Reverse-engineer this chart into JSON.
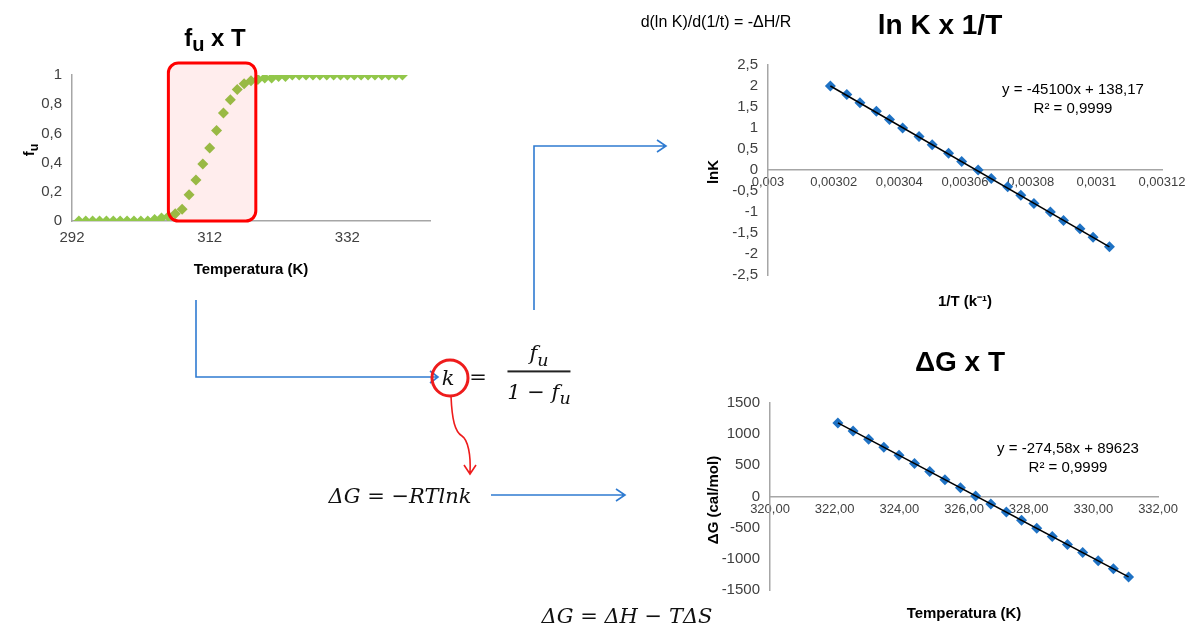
{
  "chart_data": [
    {
      "type": "scatter",
      "title": "f$_{u}$ x T",
      "xlabel": "Temperatura (K)",
      "ylabel": "f$_{u}$",
      "color": "#92c74a",
      "marker": "diamond",
      "x": [
        293,
        294,
        295,
        296,
        297,
        298,
        299,
        300,
        301,
        302,
        303,
        304,
        305,
        306,
        307,
        308,
        309,
        310,
        311,
        312,
        313,
        314,
        315,
        316,
        317,
        318,
        319,
        320,
        321,
        322,
        323,
        324,
        325,
        326,
        327,
        328,
        329,
        330,
        331,
        332,
        333,
        334,
        335,
        336,
        337,
        338,
        339,
        340
      ],
      "values": [
        0,
        0,
        0,
        0,
        0,
        0,
        0,
        0,
        0,
        0,
        0,
        0.01,
        0.02,
        0.03,
        0.05,
        0.08,
        0.18,
        0.28,
        0.39,
        0.5,
        0.62,
        0.74,
        0.83,
        0.9,
        0.94,
        0.96,
        0.97,
        0.98,
        0.98,
        0.99,
        0.99,
        1,
        1,
        1,
        1,
        1,
        1,
        1,
        1,
        1,
        1,
        1,
        1,
        1,
        1,
        1,
        1,
        1
      ],
      "xlim": [
        292,
        344
      ],
      "xticks": [
        292,
        312,
        332
      ],
      "ylim": [
        0,
        1
      ],
      "yticks": [
        0,
        {
          "value": 0.2,
          "label": "0,2"
        },
        {
          "value": 0.4,
          "label": "0,4"
        },
        {
          "value": 0.6,
          "label": "0,6"
        },
        {
          "value": 0.8,
          "label": "0,8"
        },
        1
      ],
      "bands": [
        {
          "axis": "x",
          "from": 306,
          "to": 318.7,
          "color": "#ff0000"
        }
      ]
    },
    {
      "type": "scatter",
      "title": "ln K x 1/T",
      "xlabel": "1/T (k⁻¹)",
      "ylabel": "lnK",
      "annotations": [
        "y = -45100x + 138,17",
        "R² = 0,9999"
      ],
      "series": [
        {
          "type": "scatter",
          "color": "#1f72c4",
          "marker": "diamond",
          "x": [
            0.003019,
            0.003024,
            0.003028,
            0.003033,
            0.003037,
            0.003041,
            0.003046,
            0.00305,
            0.003055,
            0.003059,
            0.003064,
            0.003068,
            0.003073,
            0.003077,
            0.003081,
            0.003086,
            0.00309,
            0.003095,
            0.003099,
            0.003104
          ],
          "values": [
            2,
            1.8,
            1.6,
            1.4,
            1.2,
            1,
            0.8,
            0.6,
            0.4,
            0.2,
            0,
            -0.2,
            -0.4,
            -0.6,
            -0.8,
            -1,
            -1.2,
            -1.4,
            -1.6,
            -1.83
          ]
        },
        {
          "type": "line",
          "color": "#000000",
          "marker": "none",
          "x": [
            0.003019,
            0.003104
          ],
          "values": [
            2,
            -1.83
          ]
        }
      ],
      "xlim": [
        0.003,
        0.00312
      ],
      "xticks": [
        {
          "value": 0.003,
          "label": "0,003"
        },
        {
          "value": 0.00302,
          "label": "0,00302"
        },
        {
          "value": 0.00304,
          "label": "0,00304"
        },
        {
          "value": 0.00306,
          "label": "0,00306"
        },
        {
          "value": 0.00308,
          "label": "0,00308"
        },
        {
          "value": 0.0031,
          "label": "0,0031"
        },
        {
          "value": 0.00312,
          "label": "0,00312"
        }
      ],
      "ylim": [
        -2.5,
        2.5
      ],
      "yticks": [
        {
          "value": -2.5,
          "label": "-2,5"
        },
        -2,
        {
          "value": -1.5,
          "label": "-1,5"
        },
        -1,
        {
          "value": -0.5,
          "label": "-0,5"
        },
        0,
        {
          "value": 0.5,
          "label": "0,5"
        },
        1,
        {
          "value": 1.5,
          "label": "1,5"
        },
        2,
        {
          "value": 2.5,
          "label": "2,5"
        }
      ]
    },
    {
      "type": "scatter",
      "title": "ΔG x T",
      "xlabel": "Temperatura (K)",
      "ylabel": "ΔG (cal/mol)",
      "annotations": [
        "y = -274,58x + 89623",
        "R² = 0,9999"
      ],
      "series": [
        {
          "type": "scatter",
          "color": "#1f72c4",
          "marker": "diamond",
          "x": [
            322.1,
            322.57,
            323.05,
            323.52,
            323.99,
            324.47,
            324.94,
            325.41,
            325.89,
            326.36,
            326.83,
            327.31,
            327.78,
            328.25,
            328.73,
            329.2,
            329.67,
            330.15,
            330.62,
            331.09
          ],
          "values": [
            1180,
            1050,
            920,
            790,
            660,
            530,
            400,
            270,
            140,
            10,
            -120,
            -250,
            -380,
            -510,
            -640,
            -770,
            -900,
            -1030,
            -1160,
            -1290
          ]
        },
        {
          "type": "line",
          "color": "#000000",
          "marker": "none",
          "x": [
            322.1,
            331.09
          ],
          "values": [
            1180,
            -1290
          ]
        }
      ],
      "xlim": [
        320,
        332
      ],
      "xticks": [
        {
          "value": 320,
          "label": "320,00"
        },
        {
          "value": 322,
          "label": "322,00"
        },
        {
          "value": 324,
          "label": "324,00"
        },
        {
          "value": 326,
          "label": "326,00"
        },
        {
          "value": 328,
          "label": "328,00"
        },
        {
          "value": 330,
          "label": "330,00"
        },
        {
          "value": 332,
          "label": "332,00"
        }
      ],
      "ylim": [
        -1500,
        1500
      ],
      "yticks": [
        -1500,
        -1000,
        -500,
        0,
        500,
        1000,
        1500
      ]
    },
    {
      "type": "other",
      "annotations": [
        "d(ln K)/d(1/t) = -ΔH/R",
        "k",
        "=",
        "f$_{u}$",
        "1 − f$_{u}$",
        "ΔG = −RTlnk",
        "ΔG = ΔH − TΔS"
      ]
    }
  ]
}
